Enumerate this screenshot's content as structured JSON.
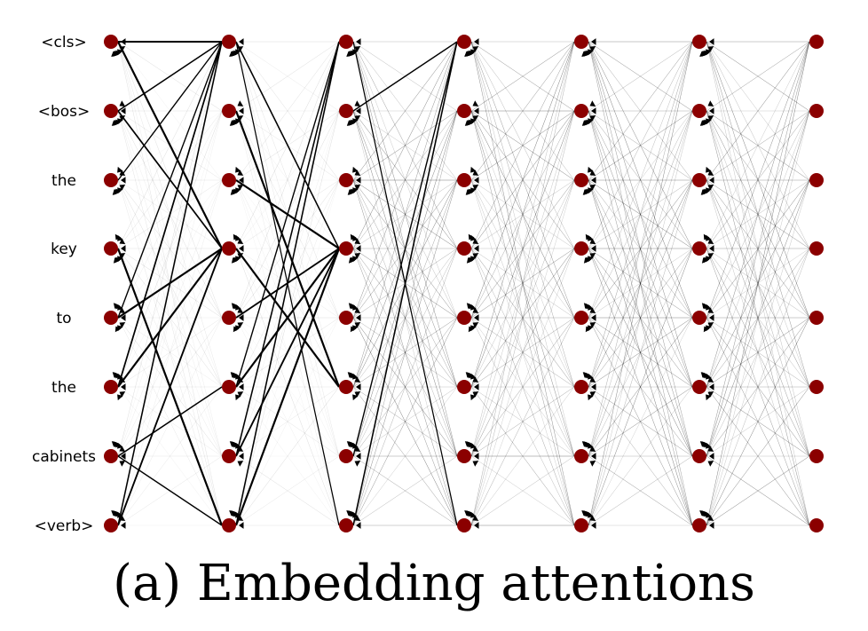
{
  "caption": "(a) Embedding attentions",
  "tokens": [
    "<cls>",
    "<bos>",
    "the",
    "key",
    "to",
    "the",
    "cabinets",
    "<verb>"
  ],
  "layers": 7,
  "colors": {
    "node": "#8b0000",
    "edge": "#000000",
    "label": "#000000"
  },
  "strong_edges": [
    {
      "from_layer": 0,
      "from": 0,
      "to_layer": 1,
      "to": 0,
      "weight": 0.9
    },
    {
      "from_layer": 0,
      "from": 0,
      "to_layer": 1,
      "to": 3,
      "weight": 1.0
    },
    {
      "from_layer": 0,
      "from": 1,
      "to_layer": 1,
      "to": 0,
      "weight": 0.6
    },
    {
      "from_layer": 0,
      "from": 2,
      "to_layer": 1,
      "to": 0,
      "weight": 0.5
    },
    {
      "from_layer": 0,
      "from": 1,
      "to_layer": 1,
      "to": 3,
      "weight": 0.7
    },
    {
      "from_layer": 0,
      "from": 3,
      "to_layer": 1,
      "to": 7,
      "weight": 1.0
    },
    {
      "from_layer": 0,
      "from": 4,
      "to_layer": 1,
      "to": 3,
      "weight": 1.0
    },
    {
      "from_layer": 0,
      "from": 5,
      "to_layer": 1,
      "to": 3,
      "weight": 1.0
    },
    {
      "from_layer": 0,
      "from": 5,
      "to_layer": 1,
      "to": 0,
      "weight": 0.7
    },
    {
      "from_layer": 0,
      "from": 6,
      "to_layer": 1,
      "to": 5,
      "weight": 0.6
    },
    {
      "from_layer": 0,
      "from": 7,
      "to_layer": 1,
      "to": 3,
      "weight": 0.8
    },
    {
      "from_layer": 0,
      "from": 7,
      "to_layer": 1,
      "to": 0,
      "weight": 0.6
    },
    {
      "from_layer": 0,
      "from": 6,
      "to_layer": 1,
      "to": 7,
      "weight": 0.5
    },
    {
      "from_layer": 0,
      "from": 4,
      "to_layer": 1,
      "to": 0,
      "weight": 0.5
    },
    {
      "from_layer": 1,
      "from": 0,
      "to_layer": 2,
      "to": 3,
      "weight": 0.6
    },
    {
      "from_layer": 1,
      "from": 1,
      "to_layer": 2,
      "to": 5,
      "weight": 1.0
    },
    {
      "from_layer": 1,
      "from": 2,
      "to_layer": 2,
      "to": 3,
      "weight": 1.0
    },
    {
      "from_layer": 1,
      "from": 3,
      "to_layer": 2,
      "to": 5,
      "weight": 1.0
    },
    {
      "from_layer": 1,
      "from": 4,
      "to_layer": 2,
      "to": 3,
      "weight": 0.8
    },
    {
      "from_layer": 1,
      "from": 5,
      "to_layer": 2,
      "to": 3,
      "weight": 1.0
    },
    {
      "from_layer": 1,
      "from": 6,
      "to_layer": 2,
      "to": 3,
      "weight": 0.8
    },
    {
      "from_layer": 1,
      "from": 7,
      "to_layer": 2,
      "to": 3,
      "weight": 1.0
    },
    {
      "from_layer": 1,
      "from": 6,
      "to_layer": 2,
      "to": 0,
      "weight": 0.6
    },
    {
      "from_layer": 1,
      "from": 7,
      "to_layer": 2,
      "to": 0,
      "weight": 0.6
    },
    {
      "from_layer": 1,
      "from": 5,
      "to_layer": 2,
      "to": 0,
      "weight": 0.5
    },
    {
      "from_layer": 1,
      "from": 0,
      "to_layer": 2,
      "to": 7,
      "weight": 0.4
    },
    {
      "from_layer": 2,
      "from": 7,
      "to_layer": 3,
      "to": 0,
      "weight": 0.6
    },
    {
      "from_layer": 2,
      "from": 6,
      "to_layer": 3,
      "to": 0,
      "weight": 0.5
    },
    {
      "from_layer": 2,
      "from": 1,
      "to_layer": 3,
      "to": 0,
      "weight": 0.5
    },
    {
      "from_layer": 2,
      "from": 0,
      "to_layer": 3,
      "to": 7,
      "weight": 0.4
    }
  ]
}
